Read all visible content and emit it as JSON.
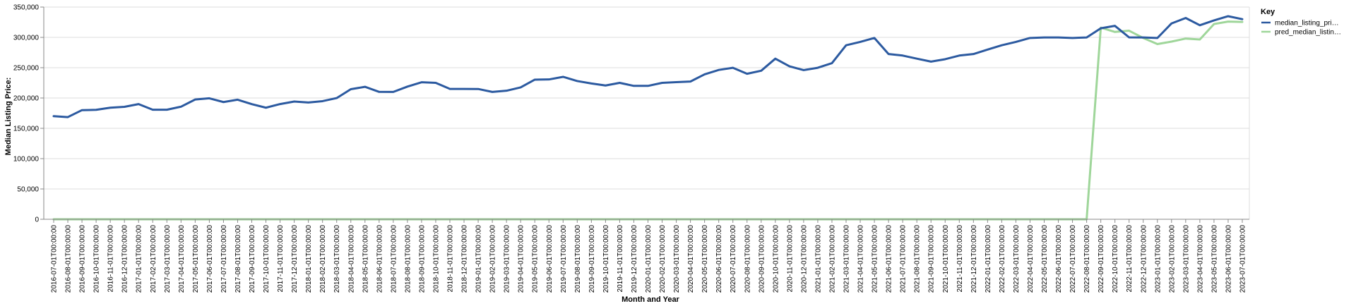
{
  "chart_data": {
    "type": "line",
    "xlabel": "Month and Year",
    "ylabel": "Median Listing Price:",
    "ylim": [
      0,
      350000
    ],
    "yticks": [
      0,
      50000,
      100000,
      150000,
      200000,
      250000,
      300000,
      350000
    ],
    "ytick_labels": [
      "0",
      "50,000",
      "100,000",
      "150,000",
      "200,000",
      "250,000",
      "300,000",
      "350,000"
    ],
    "grid": true,
    "legend": {
      "title": "Key",
      "placement": "right",
      "entries": [
        "median_listing_pri…",
        "pred_median_listin…"
      ]
    },
    "x": [
      "2016-07-01T00:00:00",
      "2016-08-01T00:00:00",
      "2016-09-01T00:00:00",
      "2016-10-01T00:00:00",
      "2016-11-01T00:00:00",
      "2016-12-01T00:00:00",
      "2017-01-01T00:00:00",
      "2017-02-01T00:00:00",
      "2017-03-01T00:00:00",
      "2017-04-01T00:00:00",
      "2017-05-01T00:00:00",
      "2017-06-01T00:00:00",
      "2017-07-01T00:00:00",
      "2017-08-01T00:00:00",
      "2017-09-01T00:00:00",
      "2017-10-01T00:00:00",
      "2017-11-01T00:00:00",
      "2017-12-01T00:00:00",
      "2018-01-01T00:00:00",
      "2018-02-01T00:00:00",
      "2018-03-01T00:00:00",
      "2018-04-01T00:00:00",
      "2018-05-01T00:00:00",
      "2018-06-01T00:00:00",
      "2018-07-01T00:00:00",
      "2018-08-01T00:00:00",
      "2018-09-01T00:00:00",
      "2018-10-01T00:00:00",
      "2018-11-01T00:00:00",
      "2018-12-01T00:00:00",
      "2019-01-01T00:00:00",
      "2019-02-01T00:00:00",
      "2019-03-01T00:00:00",
      "2019-04-01T00:00:00",
      "2019-05-01T00:00:00",
      "2019-06-01T00:00:00",
      "2019-07-01T00:00:00",
      "2019-08-01T00:00:00",
      "2019-09-01T00:00:00",
      "2019-10-01T00:00:00",
      "2019-11-01T00:00:00",
      "2019-12-01T00:00:00",
      "2020-01-01T00:00:00",
      "2020-02-01T00:00:00",
      "2020-03-01T00:00:00",
      "2020-04-01T00:00:00",
      "2020-05-01T00:00:00",
      "2020-06-01T00:00:00",
      "2020-07-01T00:00:00",
      "2020-08-01T00:00:00",
      "2020-09-01T00:00:00",
      "2020-10-01T00:00:00",
      "2020-11-01T00:00:00",
      "2020-12-01T00:00:00",
      "2021-01-01T00:00:00",
      "2021-02-01T00:00:00",
      "2021-03-01T00:00:00",
      "2021-04-01T00:00:00",
      "2021-05-01T00:00:00",
      "2021-06-01T00:00:00",
      "2021-07-01T00:00:00",
      "2021-08-01T00:00:00",
      "2021-09-01T00:00:00",
      "2021-10-01T00:00:00",
      "2021-11-01T00:00:00",
      "2021-12-01T00:00:00",
      "2022-01-01T00:00:00",
      "2022-02-01T00:00:00",
      "2022-03-01T00:00:00",
      "2022-04-01T00:00:00",
      "2022-05-01T00:00:00",
      "2022-06-01T00:00:00",
      "2022-07-01T00:00:00",
      "2022-08-01T00:00:00",
      "2022-09-01T00:00:00",
      "2022-10-01T00:00:00",
      "2022-11-01T00:00:00",
      "2022-12-01T00:00:00",
      "2023-01-01T00:00:00",
      "2023-02-01T00:00:00",
      "2023-03-01T00:00:00",
      "2023-04-01T00:00:00",
      "2023-05-01T00:00:00",
      "2023-06-01T00:00:00",
      "2023-07-01T00:00:00"
    ],
    "series": [
      {
        "name": "median_listing_pri…",
        "color": "#2c5aa0",
        "values": [
          170000,
          168500,
          180000,
          180500,
          184000,
          185500,
          190000,
          180700,
          180700,
          185700,
          197500,
          199500,
          193300,
          197200,
          189900,
          184000,
          190000,
          194200,
          192600,
          194800,
          199900,
          214500,
          218500,
          210100,
          210000,
          218800,
          226000,
          225000,
          215000,
          215000,
          214900,
          210000,
          212000,
          217500,
          230300,
          230600,
          234900,
          228000,
          224000,
          220600,
          225000,
          220000,
          220000,
          225000,
          226200,
          227200,
          239000,
          246300,
          249900,
          240000,
          245000,
          264900,
          252200,
          246000,
          249900,
          257500,
          287000,
          292500,
          299000,
          272500,
          270000,
          264900,
          260000,
          264000,
          270000,
          272500,
          279900,
          287000,
          292500,
          299000,
          299900,
          299900,
          299000,
          299900,
          315000,
          319000,
          300000,
          299900,
          299000,
          323000,
          332000,
          320000,
          328000,
          334900,
          330000
        ]
      },
      {
        "name": "pred_median_listin…",
        "color": "#9fd69a",
        "values": [
          0,
          0,
          0,
          0,
          0,
          0,
          0,
          0,
          0,
          0,
          0,
          0,
          0,
          0,
          0,
          0,
          0,
          0,
          0,
          0,
          0,
          0,
          0,
          0,
          0,
          0,
          0,
          0,
          0,
          0,
          0,
          0,
          0,
          0,
          0,
          0,
          0,
          0,
          0,
          0,
          0,
          0,
          0,
          0,
          0,
          0,
          0,
          0,
          0,
          0,
          0,
          0,
          0,
          0,
          0,
          0,
          0,
          0,
          0,
          0,
          0,
          0,
          0,
          0,
          0,
          0,
          0,
          0,
          0,
          0,
          0,
          0,
          0,
          0,
          316000,
          309000,
          311000,
          299000,
          289000,
          293000,
          298000,
          296500,
          322000,
          326000,
          325500
        ]
      }
    ]
  }
}
